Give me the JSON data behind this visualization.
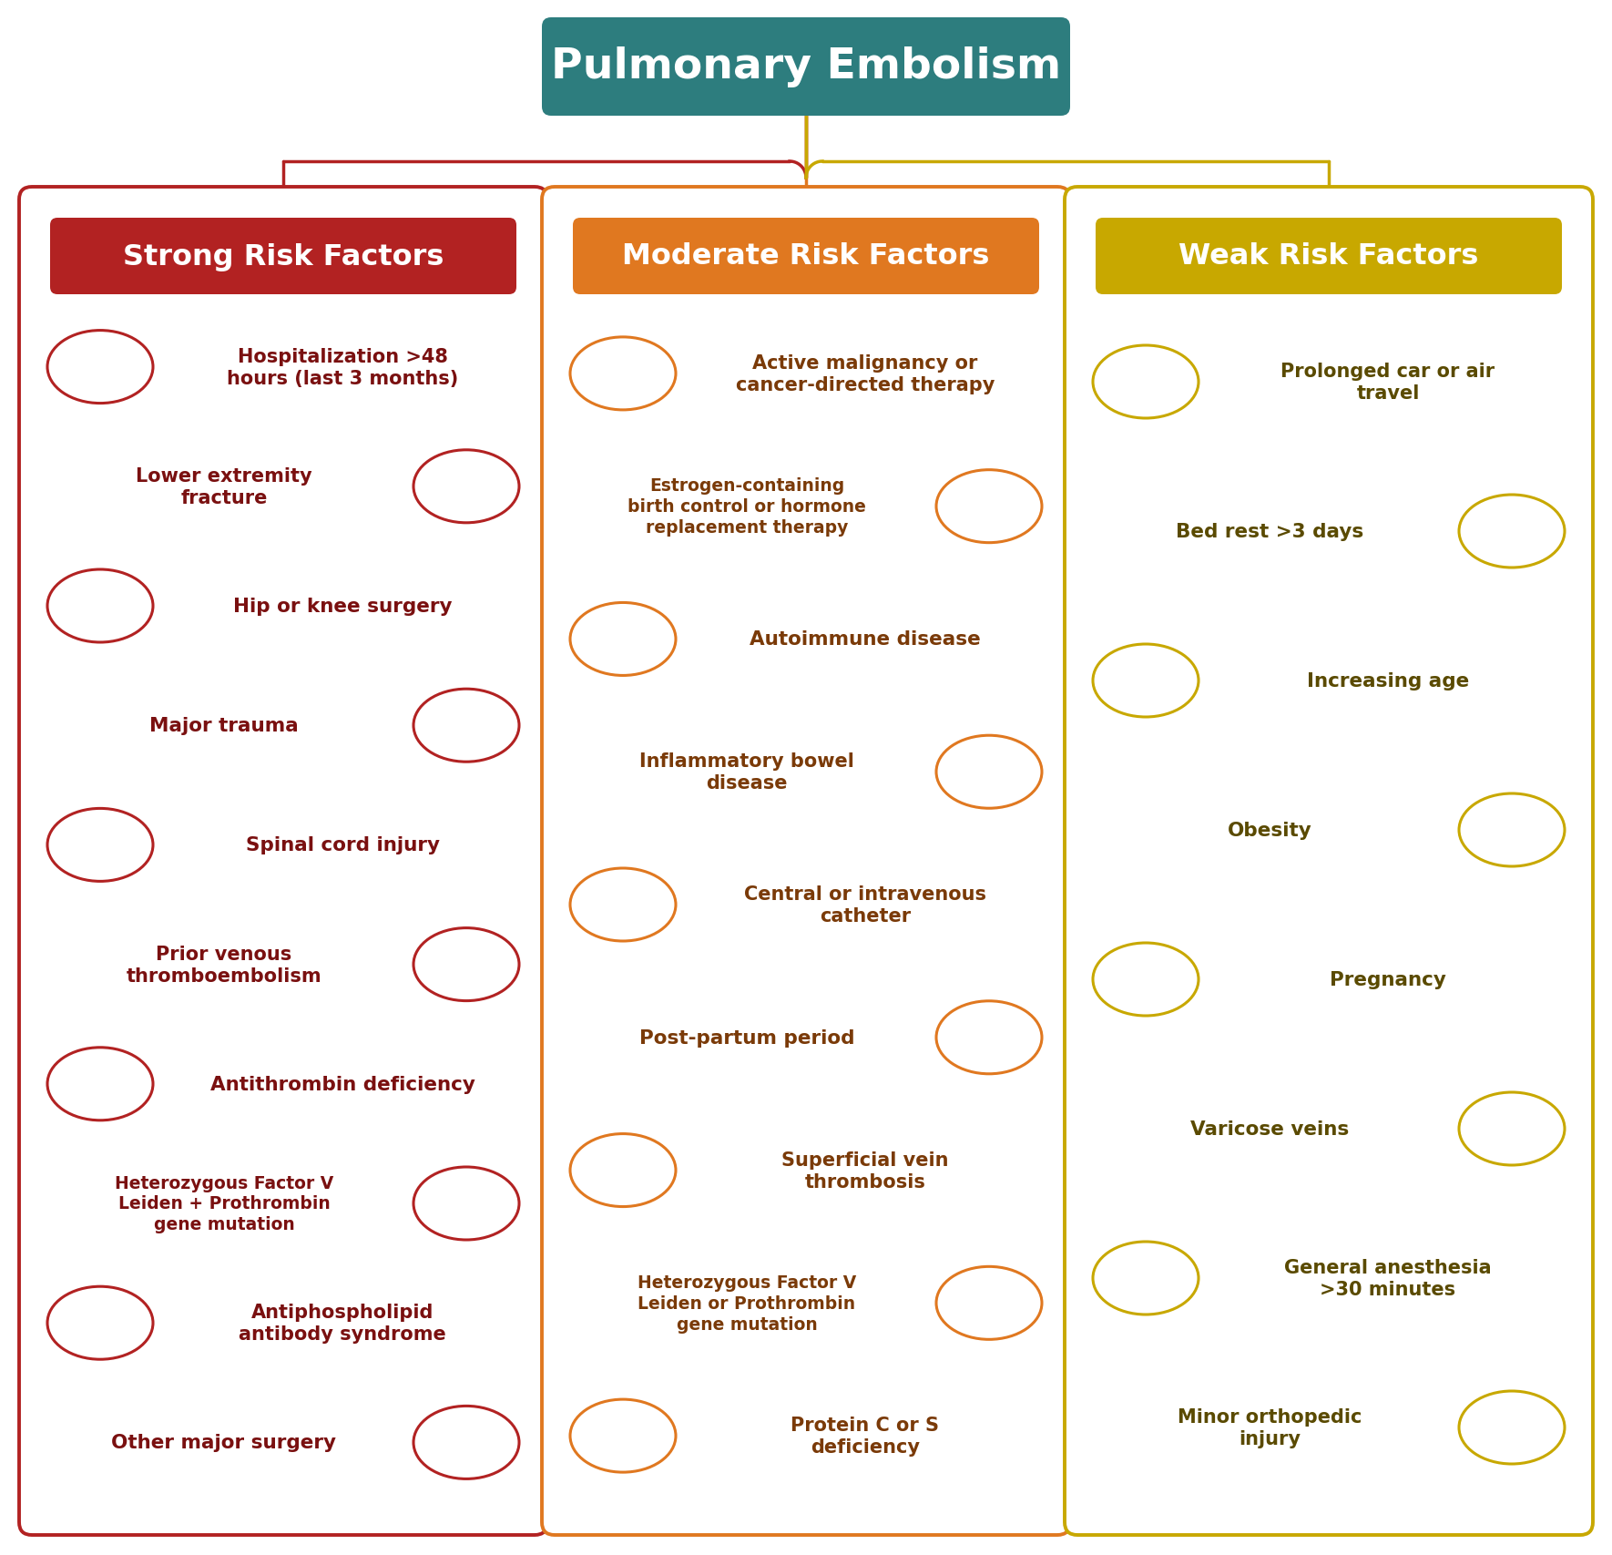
{
  "title": "Pulmonary Embolism",
  "title_bg": "#2d7d7e",
  "title_text_color": "#ffffff",
  "bg_color": "#ffffff",
  "connector_colors": [
    "#b22222",
    "#e07820",
    "#c8a800"
  ],
  "columns": [
    {
      "header": "Strong Risk Factors",
      "header_bg": "#b22222",
      "border_color": "#b22222",
      "text_color": "#7a1010",
      "items": [
        "Hospitalization >48\nhours (last 3 months)",
        "Lower extremity\nfracture",
        "Hip or knee surgery",
        "Major trauma",
        "Spinal cord injury",
        "Prior venous\nthromboembolism",
        "Antithrombin deficiency",
        "Heterozygous Factor V\nLeiden + Prothrombin\ngene mutation",
        "Antiphospholipid\nantibody syndrome",
        "Other major surgery"
      ]
    },
    {
      "header": "Moderate Risk Factors",
      "header_bg": "#e07820",
      "border_color": "#e07820",
      "text_color": "#7a3a08",
      "items": [
        "Active malignancy or\ncancer-directed therapy",
        "Estrogen-containing\nbirth control or hormone\nreplacement therapy",
        "Autoimmune disease",
        "Inflammatory bowel\ndisease",
        "Central or intravenous\ncatheter",
        "Post-partum period",
        "Superficial vein\nthrombosis",
        "Heterozygous Factor V\nLeiden or Prothrombin\ngene mutation",
        "Protein C or S\ndeficiency"
      ]
    },
    {
      "header": "Weak Risk Factors",
      "header_bg": "#c8a800",
      "border_color": "#c8a800",
      "text_color": "#5a4a00",
      "items": [
        "Prolonged car or air\ntravel",
        "Bed rest >3 days",
        "Increasing age",
        "Obesity",
        "Pregnancy",
        "Varicose veins",
        "General anesthesia\n>30 minutes",
        "Minor orthopedic\ninjury"
      ]
    }
  ]
}
